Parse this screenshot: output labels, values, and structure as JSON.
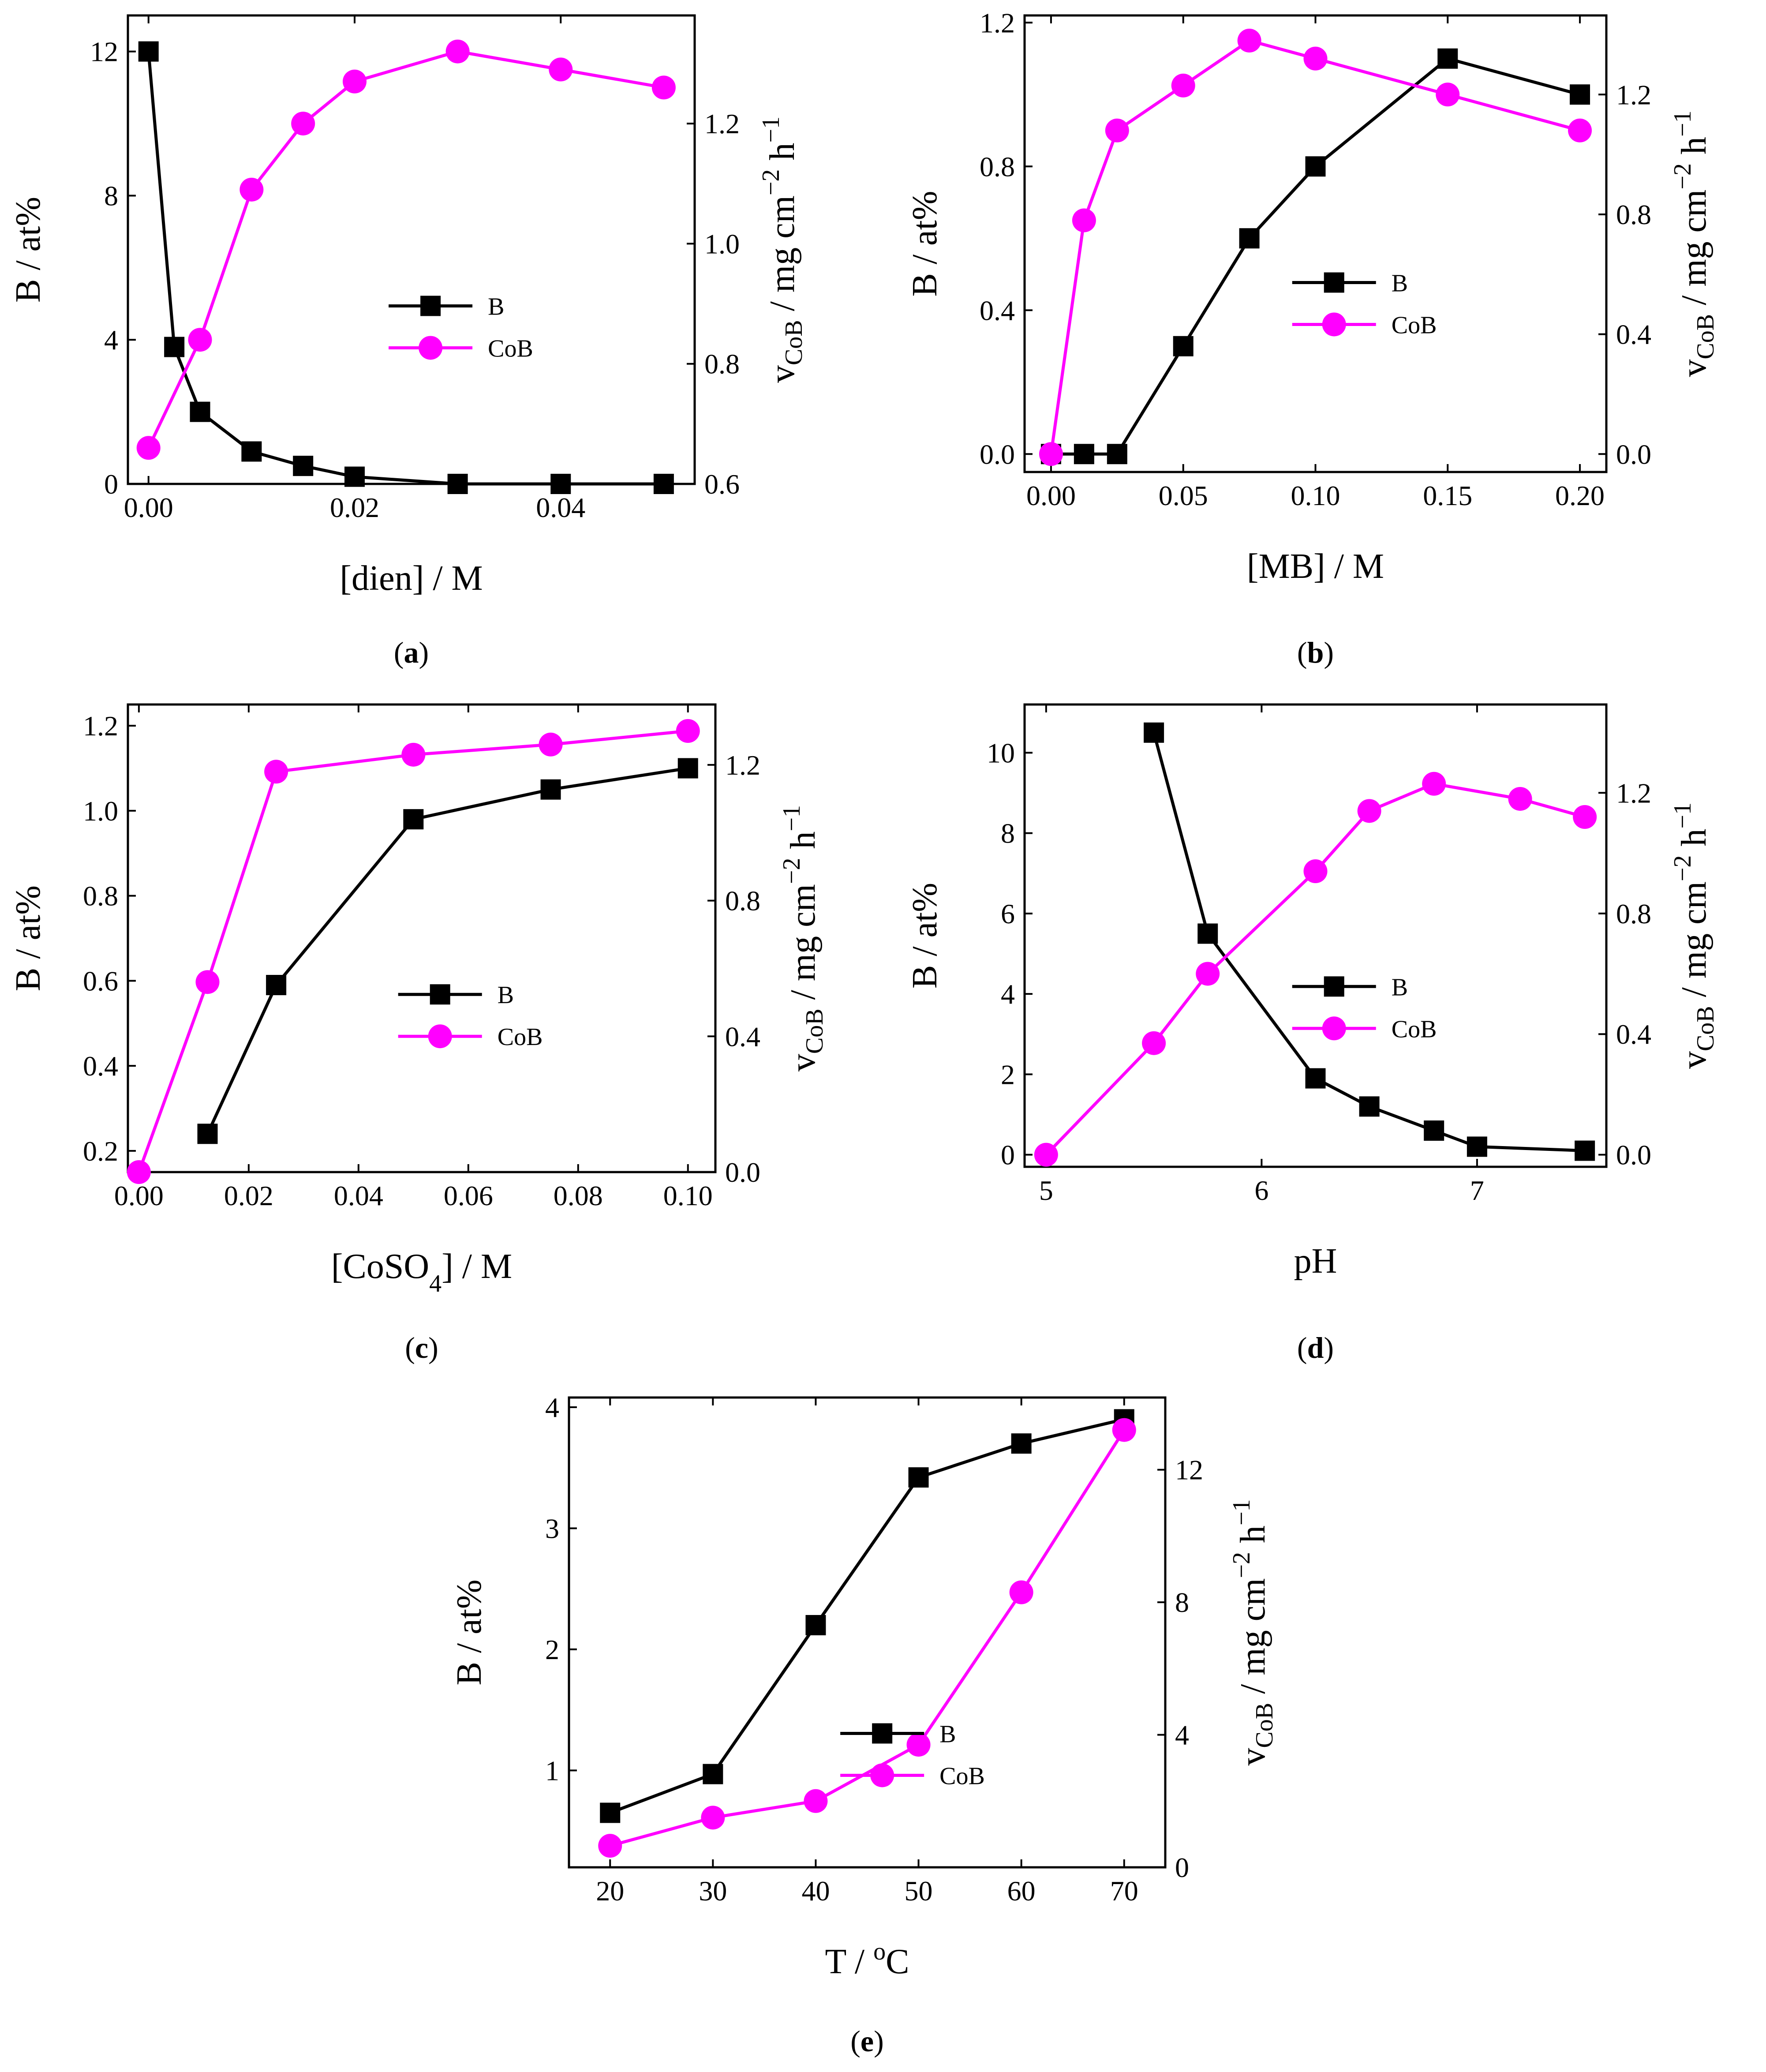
{
  "figure_title": "",
  "colors": {
    "B": "#000000",
    "CoB": "#ff00ff",
    "axes": "#000000"
  },
  "chart_data": [
    {
      "id": "a",
      "type": "line",
      "panel_label": "(a)",
      "panel_letter": "a",
      "xlabel": "[dien] / M",
      "ylabel_left": "B / at%",
      "ylabel_right": "v_CoB / mg cm^-2 h^-1",
      "xlim": [
        -0.002,
        0.053
      ],
      "ylim_left": [
        0,
        13
      ],
      "ylim_right": [
        0.6,
        1.38
      ],
      "xticks": [
        0,
        0.02,
        0.04
      ],
      "xtick_labels": [
        "0.00",
        "0.02",
        "0.04"
      ],
      "yticks_left": [
        0,
        4,
        8,
        12
      ],
      "ytick_labels_left": [
        "0",
        "4",
        "8",
        "12"
      ],
      "yticks_right": [
        0.6,
        0.8,
        1.0,
        1.2
      ],
      "ytick_labels_right": [
        "0.6",
        "0.8",
        "1.0",
        "1.2"
      ],
      "legend": [
        "B",
        "CoB"
      ],
      "legend_position": "center-right",
      "series": [
        {
          "name": "B",
          "axis": "left",
          "marker": "square",
          "x": [
            0,
            0.0025,
            0.005,
            0.01,
            0.015,
            0.02,
            0.03,
            0.04,
            0.05
          ],
          "y": [
            12,
            3.8,
            2.0,
            0.9,
            0.5,
            0.2,
            0.0,
            0.0,
            0.0
          ]
        },
        {
          "name": "CoB",
          "axis": "right",
          "marker": "circle",
          "x": [
            0,
            0.005,
            0.01,
            0.015,
            0.02,
            0.03,
            0.04,
            0.05
          ],
          "y": [
            0.66,
            0.84,
            1.09,
            1.2,
            1.27,
            1.32,
            1.29,
            1.26
          ]
        }
      ]
    },
    {
      "id": "b",
      "type": "line",
      "panel_label": "(b)",
      "panel_letter": "b",
      "xlabel": "[MB] / M",
      "ylabel_left": "B / at%",
      "ylabel_right": "v_CoB / mg cm^-2 h^-1",
      "xlim": [
        -0.01,
        0.21
      ],
      "ylim_left": [
        -0.05,
        1.22
      ],
      "ylim_right": [
        -0.06,
        1.464
      ],
      "xticks": [
        0,
        0.05,
        0.1,
        0.15,
        0.2
      ],
      "xtick_labels": [
        "0.00",
        "0.05",
        "0.10",
        "0.15",
        "0.20"
      ],
      "yticks_left": [
        0,
        0.4,
        0.8,
        1.2
      ],
      "ytick_labels_left": [
        "0.0",
        "0.4",
        "0.8",
        "1.2"
      ],
      "yticks_right": [
        0,
        0.4,
        0.8,
        1.2
      ],
      "ytick_labels_right": [
        "0.0",
        "0.4",
        "0.8",
        "1.2"
      ],
      "legend": [
        "B",
        "CoB"
      ],
      "legend_position": "center-right",
      "series": [
        {
          "name": "B",
          "axis": "left",
          "marker": "square",
          "x": [
            0,
            0.0125,
            0.025,
            0.05,
            0.075,
            0.1,
            0.15,
            0.2
          ],
          "y": [
            0,
            0,
            0,
            0.3,
            0.6,
            0.8,
            1.1,
            1.0
          ]
        },
        {
          "name": "CoB",
          "axis": "right",
          "marker": "circle",
          "x": [
            0,
            0.0125,
            0.025,
            0.05,
            0.075,
            0.1,
            0.15,
            0.2
          ],
          "y": [
            0,
            0.78,
            1.08,
            1.23,
            1.38,
            1.32,
            1.2,
            1.08
          ]
        }
      ]
    },
    {
      "id": "c",
      "type": "line",
      "panel_label": "(c)",
      "panel_letter": "c",
      "xlabel": "[CoSO4] / M",
      "ylabel_left": "B / at%",
      "ylabel_right": "v_CoB / mg cm^-2 h^-1",
      "xlim": [
        -0.002,
        0.105
      ],
      "ylim_left": [
        0.15,
        1.25
      ],
      "ylim_right": [
        0,
        1.378
      ],
      "xticks": [
        0,
        0.02,
        0.04,
        0.06,
        0.08,
        0.1
      ],
      "xtick_labels": [
        "0.00",
        "0.02",
        "0.04",
        "0.06",
        "0.08",
        "0.10"
      ],
      "yticks_left": [
        0.2,
        0.4,
        0.6,
        0.8,
        1.0,
        1.2
      ],
      "ytick_labels_left": [
        "0.2",
        "0.4",
        "0.6",
        "0.8",
        "1.0",
        "1.2"
      ],
      "yticks_right": [
        0,
        0.4,
        0.8,
        1.2
      ],
      "ytick_labels_right": [
        "0.0",
        "0.4",
        "0.8",
        "1.2"
      ],
      "legend": [
        "B",
        "CoB"
      ],
      "legend_position": "center-right",
      "series": [
        {
          "name": "B",
          "axis": "left",
          "marker": "square",
          "x": [
            0.0125,
            0.025,
            0.05,
            0.075,
            0.1
          ],
          "y": [
            0.24,
            0.59,
            0.98,
            1.05,
            1.1
          ]
        },
        {
          "name": "CoB",
          "axis": "right",
          "marker": "circle",
          "x": [
            0,
            0.0125,
            0.025,
            0.05,
            0.075,
            0.1
          ],
          "y": [
            0,
            0.56,
            1.18,
            1.23,
            1.26,
            1.3
          ]
        }
      ]
    },
    {
      "id": "d",
      "type": "line",
      "panel_label": "(d)",
      "panel_letter": "d",
      "xlabel": "pH",
      "ylabel_left": "B / at%",
      "ylabel_right": "v_CoB / mg cm^-2 h^-1",
      "xlim": [
        4.9,
        7.6
      ],
      "ylim_left": [
        -0.3,
        11.2
      ],
      "ylim_right": [
        -0.04,
        1.493
      ],
      "xticks": [
        5,
        6,
        7
      ],
      "xtick_labels": [
        "5",
        "6",
        "7"
      ],
      "yticks_left": [
        0,
        2,
        4,
        6,
        8,
        10
      ],
      "ytick_labels_left": [
        "0",
        "2",
        "4",
        "6",
        "8",
        "10"
      ],
      "yticks_right": [
        0,
        0.4,
        0.8,
        1.2
      ],
      "ytick_labels_right": [
        "0.0",
        "0.4",
        "0.8",
        "1.2"
      ],
      "legend": [
        "B",
        "CoB"
      ],
      "legend_position": "center-right",
      "series": [
        {
          "name": "B",
          "axis": "left",
          "marker": "square",
          "x": [
            5.5,
            5.75,
            6.25,
            6.5,
            6.8,
            7.0,
            7.5
          ],
          "y": [
            10.5,
            5.5,
            1.9,
            1.2,
            0.6,
            0.2,
            0.1
          ]
        },
        {
          "name": "CoB",
          "axis": "right",
          "marker": "circle",
          "x": [
            5.0,
            5.5,
            5.75,
            6.25,
            6.5,
            6.8,
            7.2,
            7.5
          ],
          "y": [
            0.0,
            0.37,
            0.6,
            0.94,
            1.14,
            1.23,
            1.18,
            1.12
          ]
        }
      ]
    },
    {
      "id": "e",
      "type": "line",
      "panel_label": "(e)",
      "panel_letter": "e",
      "xlabel": "T / °C",
      "ylabel_left": "B / at%",
      "ylabel_right": "v_CoB / mg cm^-2 h^-1",
      "xlim": [
        16,
        74
      ],
      "ylim_left": [
        0.2,
        4.08
      ],
      "ylim_right": [
        0,
        14.18
      ],
      "xticks": [
        20,
        30,
        40,
        50,
        60,
        70
      ],
      "xtick_labels": [
        "20",
        "30",
        "40",
        "50",
        "60",
        "70"
      ],
      "yticks_left": [
        1,
        2,
        3,
        4
      ],
      "ytick_labels_left": [
        "1",
        "2",
        "3",
        "4"
      ],
      "yticks_right": [
        0,
        4,
        8,
        12
      ],
      "ytick_labels_right": [
        "0",
        "4",
        "8",
        "12"
      ],
      "legend": [
        "B",
        "CoB"
      ],
      "legend_position": "lower-right",
      "series": [
        {
          "name": "B",
          "axis": "left",
          "marker": "square",
          "x": [
            20,
            30,
            40,
            50,
            60,
            70
          ],
          "y": [
            0.65,
            0.97,
            2.2,
            3.42,
            3.7,
            3.9
          ]
        },
        {
          "name": "CoB",
          "axis": "right",
          "marker": "circle",
          "x": [
            20,
            30,
            40,
            50,
            60,
            70
          ],
          "y": [
            0.65,
            1.5,
            2.0,
            3.7,
            8.3,
            13.2
          ]
        }
      ]
    }
  ]
}
